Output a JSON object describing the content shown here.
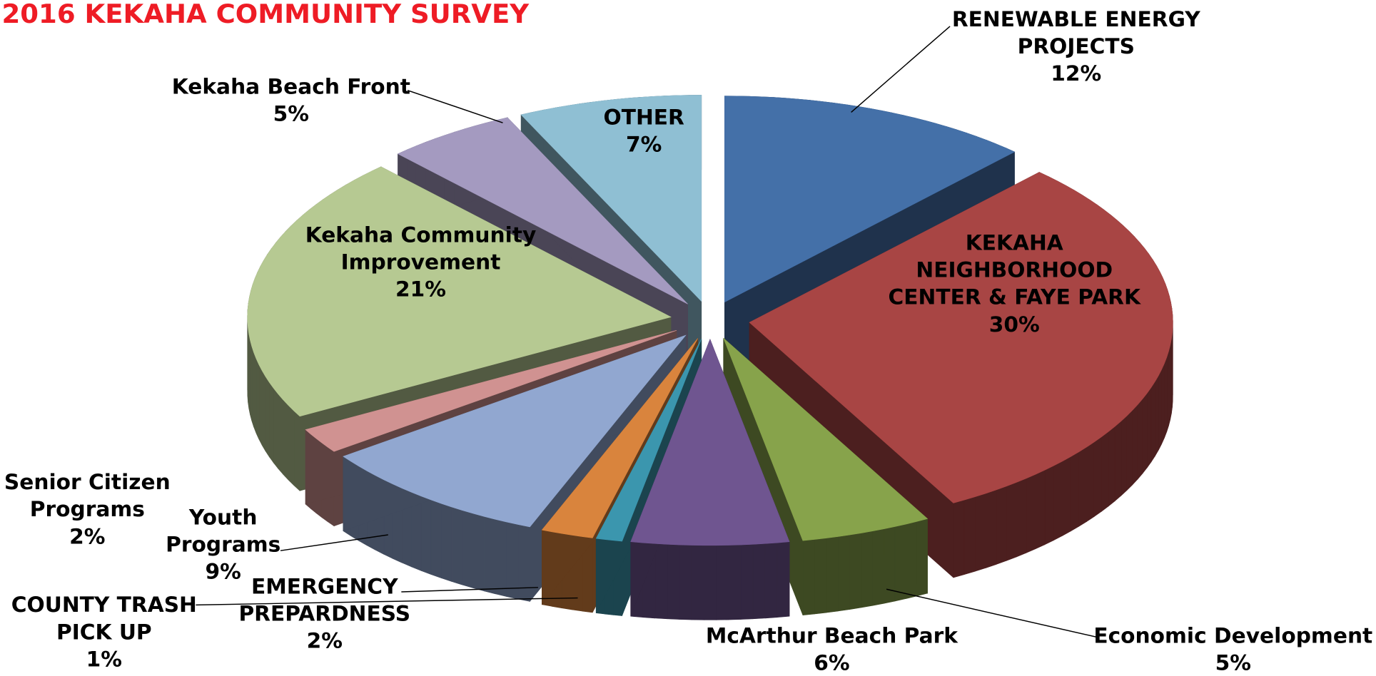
{
  "chart_data": {
    "type": "pie3d",
    "title": "2016 KEKAHA COMMUNITY SURVEY",
    "categories": [
      "RENEWABLE ENERGY\nPROJECTS",
      "KEKAHA\nNEIGHBORHOOD\nCENTER & FAYE PARK",
      "Economic Development",
      "McArthur Beach Park",
      "COUNTY TRASH\nPICK UP",
      "EMERGENCY\nPREPARDNESS",
      "Youth\nPrograms",
      "Senior Citizen\nPrograms",
      "Kekaha Community\nImprovement",
      "Kekaha Beach Front",
      "OTHER"
    ],
    "values": [
      12,
      30,
      5,
      6,
      1,
      2,
      9,
      2,
      21,
      5,
      7
    ],
    "value_labels": [
      "12%",
      "30%",
      "5%",
      "6%",
      "1%",
      "2%",
      "9%",
      "2%",
      "21%",
      "5%",
      "7%"
    ],
    "colors": [
      "#4470a8",
      "#a84544",
      "#87a34b",
      "#6f5590",
      "#3b96ae",
      "#d9843d",
      "#91a7d0",
      "#d09291",
      "#b6c992",
      "#a49ac0",
      "#8fbfd3"
    ]
  }
}
